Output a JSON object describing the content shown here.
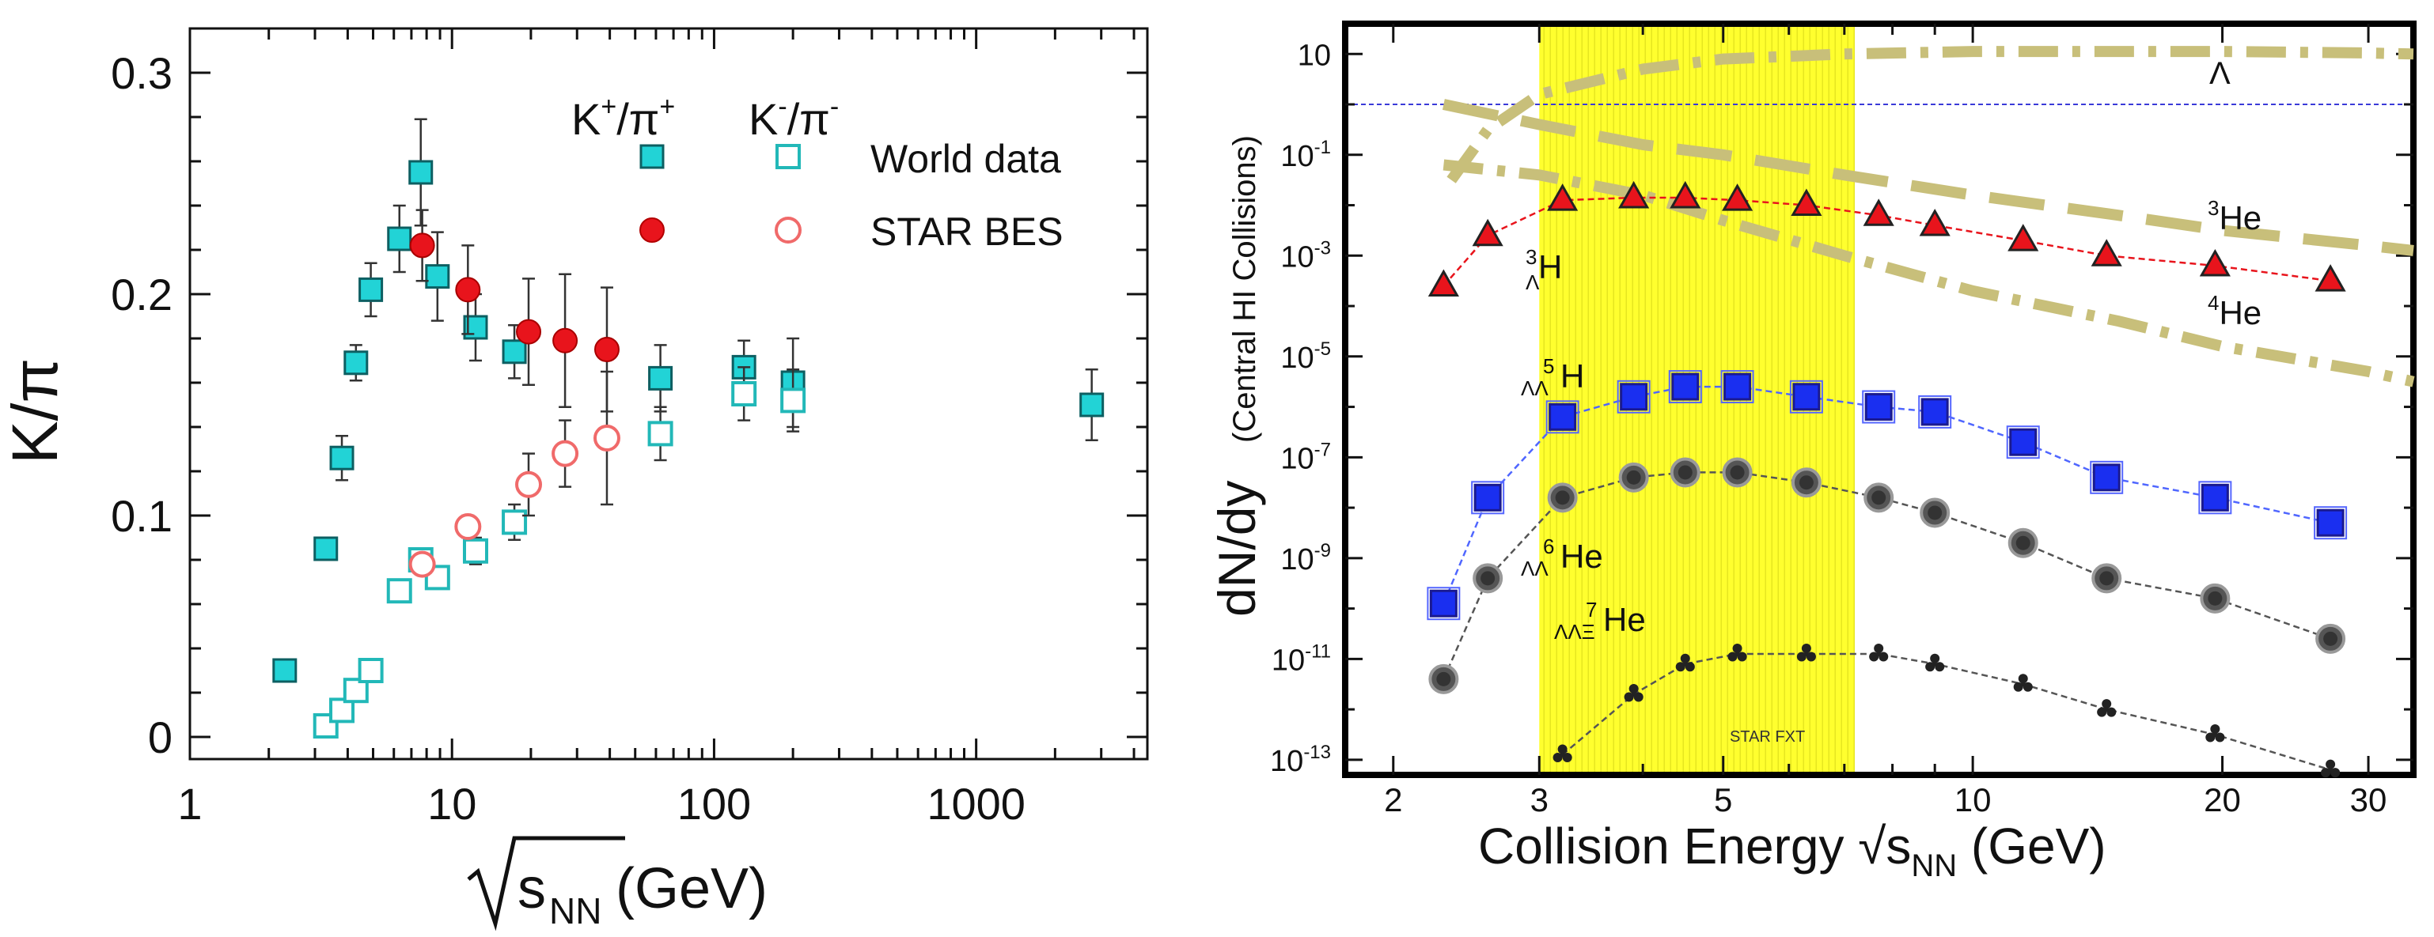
{
  "chart_data": [
    {
      "type": "scatter",
      "xscale": "log",
      "xlim": [
        1,
        4500
      ],
      "ylim": [
        -0.01,
        0.32
      ],
      "ylabel": "K/π",
      "xlabel_prefix": "s",
      "xlabel_sub": "NN",
      "xlabel_suffix": " (GeV)",
      "x_ticks": [
        1,
        10,
        100,
        1000
      ],
      "x_tick_labels": [
        "1",
        "10",
        "100",
        "1000"
      ],
      "y_ticks": [
        0,
        0.1,
        0.2,
        0.3
      ],
      "y_tick_labels": [
        "0",
        "0.1",
        "0.2",
        "0.3"
      ],
      "legend": {
        "header_kplus": "K",
        "header_kplus_sup": "+",
        "header_kplus_mid": "/π",
        "header_kplus_sup2": "+",
        "header_kminus": "K",
        "header_kminus_sup": "-",
        "header_kminus_mid": "/π",
        "header_kminus_sup2": "-",
        "world": "World data",
        "star": "STAR BES"
      },
      "series": [
        {
          "name": "World data K+/π+",
          "marker": "square-filled",
          "color": "#22d3d6",
          "x": [
            2.3,
            3.3,
            3.8,
            4.3,
            4.9,
            6.3,
            7.6,
            8.8,
            12.3,
            17.3,
            62.4,
            130,
            200,
            2760
          ],
          "y": [
            0.03,
            0.085,
            0.126,
            0.169,
            0.202,
            0.225,
            0.255,
            0.208,
            0.185,
            0.174,
            0.162,
            0.167,
            0.16,
            0.15
          ],
          "err": [
            0.002,
            0.004,
            0.01,
            0.008,
            0.012,
            0.015,
            0.024,
            0.02,
            0.015,
            0.012,
            0.015,
            0.012,
            0.02,
            0.016
          ]
        },
        {
          "name": "World data K-/π-",
          "marker": "square-open",
          "color": "#22b8b8",
          "x": [
            3.3,
            3.8,
            4.3,
            4.9,
            6.3,
            7.6,
            8.8,
            12.3,
            17.3,
            62.4,
            130,
            200
          ],
          "y": [
            0.005,
            0.012,
            0.021,
            0.03,
            0.066,
            0.08,
            0.072,
            0.084,
            0.097,
            0.137,
            0.155,
            0.152
          ],
          "err": [
            0,
            0,
            0,
            0,
            0,
            0.004,
            0.004,
            0.006,
            0.008,
            0.012,
            0.012,
            0.014
          ]
        },
        {
          "name": "STAR BES K+/π+",
          "marker": "circle-filled",
          "color": "#e8141c",
          "x": [
            7.7,
            11.5,
            19.6,
            27,
            39
          ],
          "y": [
            0.222,
            0.202,
            0.183,
            0.179,
            0.175
          ],
          "err": [
            0.016,
            0.02,
            0.024,
            0.03,
            0.028
          ]
        },
        {
          "name": "STAR BES K-/π-",
          "marker": "circle-open",
          "color": "#f06a6a",
          "x": [
            7.7,
            11.5,
            19.6,
            27,
            39
          ],
          "y": [
            0.078,
            0.095,
            0.114,
            0.128,
            0.135
          ],
          "err": [
            0.004,
            0.005,
            0.014,
            0.015,
            0.03
          ]
        }
      ]
    },
    {
      "type": "line",
      "xscale": "log",
      "yscale": "log",
      "xlim": [
        1.75,
        34
      ],
      "ylim_log10": [
        -13.3,
        1.6
      ],
      "ylabel_main": "dN/dy",
      "ylabel_sub": "(Central HI Collisions)",
      "xlabel": "Collision Energy √s",
      "xlabel_sub": "NN",
      "xlabel_suffix": " (GeV)",
      "x_ticks": [
        2,
        3,
        5,
        10,
        20,
        30
      ],
      "x_tick_labels": [
        "2",
        "3",
        "5",
        "10",
        "20",
        "30"
      ],
      "y_ticks_exp": [
        1,
        -1,
        -3,
        -5,
        -7,
        -9,
        -11,
        -13
      ],
      "y_tick_base": "10",
      "y_tick_one_label": "10",
      "y_tick_exps": [
        "-1",
        "-3",
        "-5",
        "-7",
        "-9",
        "-11",
        "-13"
      ],
      "band": {
        "x_from": 3,
        "x_to": 7.2,
        "color": "#ffff2e",
        "label": "STAR FXT"
      },
      "reference_line_y_log10": 0,
      "annotations": {
        "lambda": "Λ",
        "he3_sup": "3",
        "he3": "He",
        "he4_sup": "4",
        "he4": "He",
        "h3_sup": "3",
        "h3_sub": "Λ",
        "h3": "H",
        "h5_sup": "5",
        "h5_sub": "ΛΛ",
        "h5": "H",
        "he6_sup": "6",
        "he6_sub": "ΛΛ",
        "he6": "He",
        "he7_sup": "7",
        "he7_sub": "ΛΛΞ",
        "he7": "He"
      },
      "series": [
        {
          "name": "Λ",
          "style": "model-dashdot",
          "color": "#c8bf7a",
          "x": [
            2.35,
            2.6,
            3,
            4,
            5,
            7,
            10,
            15,
            20,
            30,
            34
          ],
          "y_log10": [
            -1.5,
            -0.5,
            0.2,
            0.7,
            0.9,
            1.0,
            1.05,
            1.05,
            1.05,
            1.02,
            1.0
          ]
        },
        {
          "name": "3He",
          "style": "model-dashed",
          "color": "#c8bf7a",
          "x": [
            2.3,
            3,
            4,
            5,
            7,
            10,
            15,
            20,
            30,
            34
          ],
          "y_log10": [
            0.0,
            -0.4,
            -0.8,
            -1.0,
            -1.4,
            -1.8,
            -2.2,
            -2.5,
            -2.8,
            -2.9
          ]
        },
        {
          "name": "4He",
          "style": "model-dashdot",
          "color": "#c8bf7a",
          "x": [
            2.3,
            3,
            4,
            5,
            7,
            10,
            15,
            20,
            30,
            34
          ],
          "y_log10": [
            -1.2,
            -1.4,
            -1.8,
            -2.3,
            -3.0,
            -3.7,
            -4.3,
            -4.8,
            -5.3,
            -5.5
          ]
        },
        {
          "name": "Λ3H",
          "marker": "triangle",
          "color": "#e8141c",
          "line_color": "#e8141c",
          "x": [
            2.3,
            2.6,
            3.2,
            3.9,
            4.5,
            5.2,
            6.3,
            7.7,
            9,
            11.5,
            14.5,
            19.6,
            27
          ],
          "y_log10": [
            -3.6,
            -2.6,
            -1.9,
            -1.85,
            -1.85,
            -1.9,
            -2.0,
            -2.2,
            -2.4,
            -2.7,
            -3.0,
            -3.2,
            -3.5
          ]
        },
        {
          "name": "ΛΛ5H",
          "marker": "square",
          "color": "#1a2ff0",
          "line_color": "#4f66ff",
          "x": [
            2.3,
            2.6,
            3.2,
            3.9,
            4.5,
            5.2,
            6.3,
            7.7,
            9,
            11.5,
            14.5,
            19.6,
            27
          ],
          "y_log10": [
            -9.9,
            -7.8,
            -6.2,
            -5.8,
            -5.6,
            -5.6,
            -5.8,
            -6.0,
            -6.1,
            -6.7,
            -7.4,
            -7.8,
            -8.3
          ]
        },
        {
          "name": "ΛΛ6He",
          "marker": "circle",
          "color": "#555555",
          "line_color": "#555555",
          "x": [
            2.3,
            2.6,
            3.2,
            3.9,
            4.5,
            5.2,
            6.3,
            7.7,
            9,
            11.5,
            14.5,
            19.6,
            27
          ],
          "y_log10": [
            -11.4,
            -9.4,
            -7.8,
            -7.4,
            -7.3,
            -7.3,
            -7.5,
            -7.8,
            -8.1,
            -8.7,
            -9.4,
            -9.8,
            -10.6
          ]
        },
        {
          "name": "ΛΛΞ7He",
          "marker": "radiation",
          "color": "#222222",
          "line_color": "#555555",
          "x": [
            3.2,
            3.9,
            4.5,
            5.2,
            6.3,
            7.7,
            9,
            11.5,
            14.5,
            19.6,
            27
          ],
          "y_log10": [
            -12.9,
            -11.7,
            -11.1,
            -10.9,
            -10.9,
            -10.9,
            -11.1,
            -11.5,
            -12.0,
            -12.5,
            -13.2
          ]
        }
      ]
    }
  ]
}
